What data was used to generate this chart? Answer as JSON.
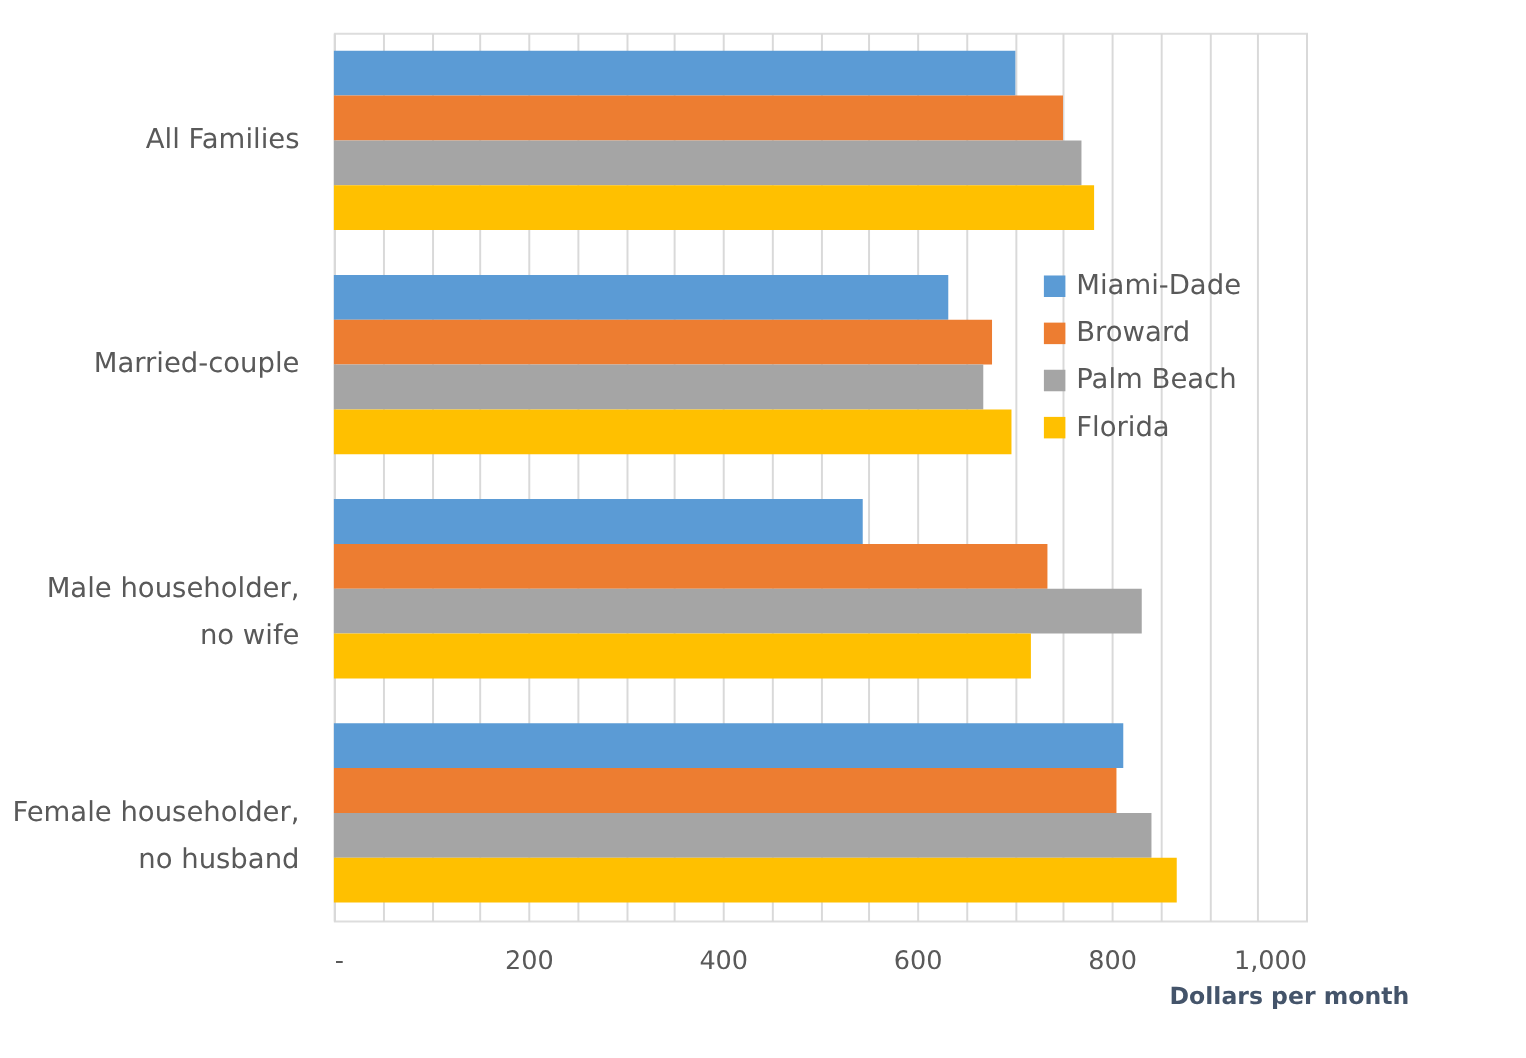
{
  "chart_data": {
    "type": "bar",
    "orientation": "horizontal",
    "xlabel": "Dollars per month",
    "categories": [
      "All Families",
      "Married-couple",
      "Male householder,\nno wife",
      "Female householder,\nno husband"
    ],
    "series": [
      {
        "name": "Miami-Dade",
        "color": "#5b9bd5",
        "values": [
          701,
          632,
          544,
          812
        ]
      },
      {
        "name": "Broward",
        "color": "#ed7d31",
        "values": [
          750,
          677,
          734,
          805
        ]
      },
      {
        "name": "Palm Beach",
        "color": "#a5a5a5",
        "values": [
          769,
          668,
          831,
          841
        ]
      },
      {
        "name": "Florida",
        "color": "#ffc000",
        "values": [
          782,
          697,
          717,
          867
        ]
      }
    ],
    "xlim": [
      0,
      1000
    ],
    "xticks": [
      {
        "value": 0,
        "label": "-"
      },
      {
        "value": 50,
        "label": null
      },
      {
        "value": 100,
        "label": null
      },
      {
        "value": 150,
        "label": null
      },
      200,
      {
        "value": 250,
        "label": null
      },
      {
        "value": 300,
        "label": null
      },
      {
        "value": 350,
        "label": null
      },
      400,
      {
        "value": 450,
        "label": null
      },
      {
        "value": 500,
        "label": null
      },
      {
        "value": 550,
        "label": null
      },
      600,
      {
        "value": 650,
        "label": null
      },
      {
        "value": 700,
        "label": null
      },
      {
        "value": 750,
        "label": null
      },
      800,
      {
        "value": 850,
        "label": null
      },
      {
        "value": 900,
        "label": null
      },
      {
        "value": 950,
        "label": null
      },
      {
        "value": 1000,
        "label": "1,000"
      }
    ],
    "grid": "x",
    "legend": "right"
  }
}
